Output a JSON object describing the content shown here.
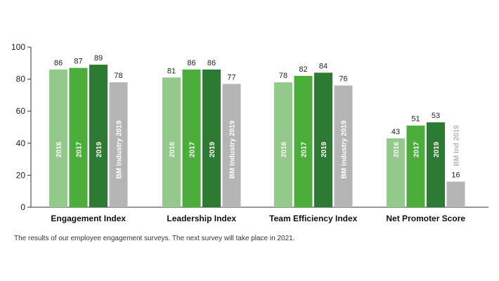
{
  "chart_data": {
    "type": "bar",
    "ylim": [
      0,
      100
    ],
    "yticks": [
      0,
      20,
      40,
      60,
      80,
      100
    ],
    "grid": false,
    "groups": [
      {
        "category": "Engagement Index",
        "bars": [
          {
            "label": "2016",
            "value": 86,
            "color": "#93c98a",
            "label_color": "#ffffff"
          },
          {
            "label": "2017",
            "value": 87,
            "color": "#4cae3a",
            "label_color": "#ffffff"
          },
          {
            "label": "2019",
            "value": 89,
            "color": "#2d7a32",
            "label_color": "#ffffff"
          },
          {
            "label": "BM Industry 2019",
            "value": 78,
            "color": "#b5b5b5",
            "label_color": "#ffffff"
          }
        ]
      },
      {
        "category": "Leadership Index",
        "bars": [
          {
            "label": "2016",
            "value": 81,
            "color": "#93c98a",
            "label_color": "#ffffff"
          },
          {
            "label": "2017",
            "value": 86,
            "color": "#4cae3a",
            "label_color": "#ffffff"
          },
          {
            "label": "2019",
            "value": 86,
            "color": "#2d7a32",
            "label_color": "#ffffff"
          },
          {
            "label": "BM Industry 2019",
            "value": 77,
            "color": "#b5b5b5",
            "label_color": "#ffffff"
          }
        ]
      },
      {
        "category": "Team Efficiency Index",
        "bars": [
          {
            "label": "2016",
            "value": 78,
            "color": "#93c98a",
            "label_color": "#ffffff"
          },
          {
            "label": "2017",
            "value": 82,
            "color": "#4cae3a",
            "label_color": "#ffffff"
          },
          {
            "label": "2019",
            "value": 84,
            "color": "#2d7a32",
            "label_color": "#ffffff"
          },
          {
            "label": "BM Industry 2019",
            "value": 76,
            "color": "#b5b5b5",
            "label_color": "#ffffff"
          }
        ]
      },
      {
        "category": "Net Promoter Score",
        "bars": [
          {
            "label": "2016",
            "value": 43,
            "color": "#93c98a",
            "label_color": "#ffffff"
          },
          {
            "label": "2017",
            "value": 51,
            "color": "#4cae3a",
            "label_color": "#ffffff"
          },
          {
            "label": "2019",
            "value": 53,
            "color": "#2d7a32",
            "label_color": "#ffffff"
          },
          {
            "label": "BM Ind 2019",
            "value": 16,
            "color": "#b5b5b5",
            "label_color": "#b5b5b5"
          }
        ]
      }
    ]
  },
  "caption": "The results of our employee engagement surveys. The next survey will take place in 2021."
}
